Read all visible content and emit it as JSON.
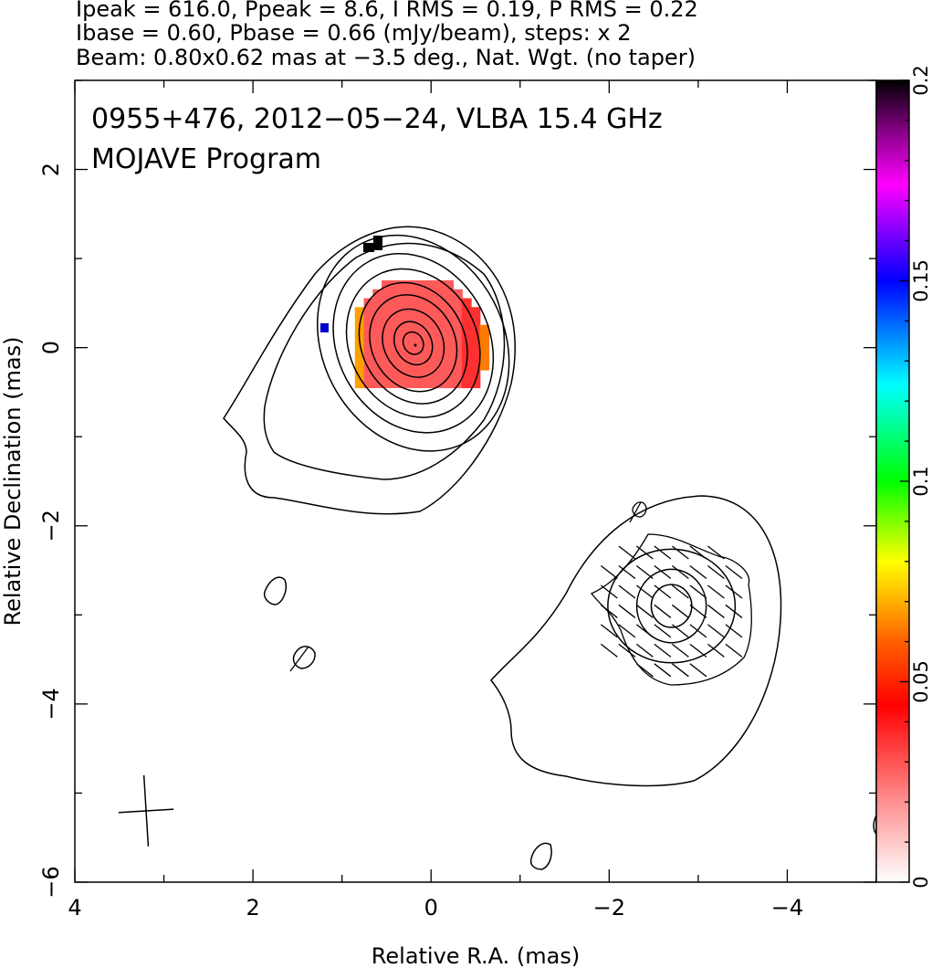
{
  "header": {
    "line1": "Ipeak = 616.0, Ppeak = 8.6, I RMS = 0.19, P RMS = 0.22",
    "line2": "Ibase = 0.60, Pbase = 0.66 (mJy/beam), steps: x 2",
    "line3": "Beam: 0.80x0.62 mas at −3.5 deg., Nat. Wgt. (no taper)"
  },
  "chart_data": {
    "type": "heatmap",
    "title": "0955+476, 2012−05−24, VLBA 15.4 GHz",
    "subtitle": "MOJAVE Program",
    "xlabel": "Relative R.A. (mas)",
    "ylabel": "Relative Declination (mas)",
    "xlim": [
      4,
      -5
    ],
    "ylim": [
      -6,
      3
    ],
    "x_ticks": [
      4,
      2,
      0,
      -2,
      -4
    ],
    "x_tick_labels": [
      "4",
      "2",
      "0",
      "−2",
      "−4"
    ],
    "y_ticks": [
      -6,
      -4,
      -2,
      0,
      2
    ],
    "y_tick_labels": [
      "−6",
      "−4",
      "−2",
      "0",
      "2"
    ],
    "colorbar": {
      "range": [
        0,
        0.2
      ],
      "ticks": [
        0,
        0.05,
        0.1,
        0.15,
        0.2
      ],
      "tick_labels": [
        "0",
        "0.05",
        "0.1",
        "0.15",
        "0.2"
      ],
      "colors": [
        "#ffffff",
        "#ff8080",
        "#ff0000",
        "#ff8000",
        "#ffff00",
        "#00ff00",
        "#00ffff",
        "#0060ff",
        "#0000ff",
        "#ff00ff",
        "#800080",
        "#000000"
      ]
    },
    "core": {
      "center": [
        0.2,
        0.05
      ],
      "contour_radii": [
        [
          1.85,
          1.75
        ],
        [
          1.55,
          1.45
        ],
        [
          1.3,
          1.2
        ],
        [
          1.05,
          0.98
        ],
        [
          0.85,
          0.78
        ],
        [
          0.6,
          0.55
        ],
        [
          0.37,
          0.35
        ],
        [
          0.2,
          0.18
        ]
      ],
      "polarization_color": "#ff5a5a",
      "polarization_extent": [
        [
          0.85,
          -0.75
        ],
        [
          -0.35,
          0.85
        ]
      ]
    },
    "jet_component": {
      "center": [
        -2.7,
        -2.9
      ],
      "contour_radii": [
        [
          1.1,
          0.85
        ],
        [
          0.6,
          0.55
        ],
        [
          0.35,
          0.32
        ]
      ]
    },
    "beam": {
      "major": 0.8,
      "minor": 0.62,
      "pa": -3.5,
      "center": [
        3.2,
        -5.2
      ]
    }
  }
}
